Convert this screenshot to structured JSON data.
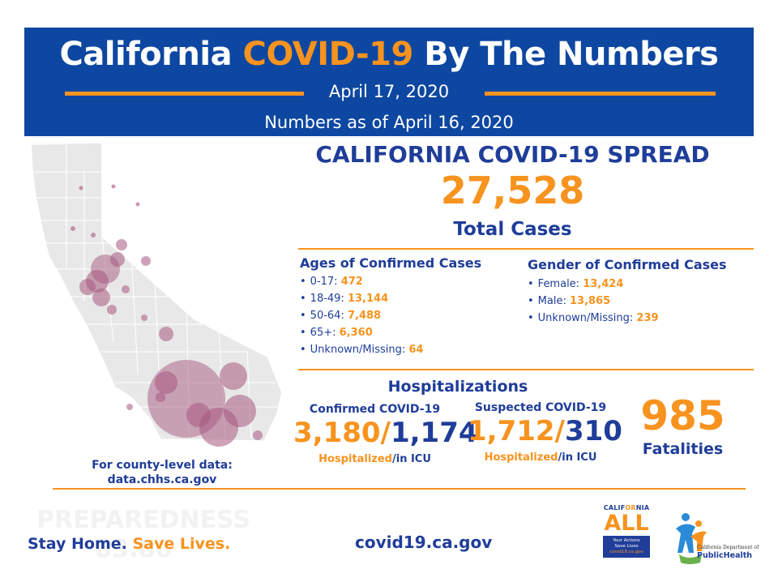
{
  "header": {
    "title_pre": "California ",
    "title_highlight": "COVID-19",
    "title_post": " By The Numbers",
    "date": "April 17, 2020",
    "as_of": "Numbers as of April 16, 2020"
  },
  "spread": {
    "title": "CALIFORNIA COVID-19 SPREAD",
    "total": "27,528",
    "total_label": "Total Cases"
  },
  "ages": {
    "title": "Ages of Confirmed Cases",
    "items": [
      {
        "label": "0-17: ",
        "value": "472"
      },
      {
        "label": "18-49: ",
        "value": "13,144"
      },
      {
        "label": "50-64: ",
        "value": "7,488"
      },
      {
        "label": "65+: ",
        "value": "6,360"
      },
      {
        "label": "Unknown/Missing: ",
        "value": "64"
      }
    ]
  },
  "gender": {
    "title": "Gender of Confirmed Cases",
    "items": [
      {
        "label": "Female: ",
        "value": "13,424"
      },
      {
        "label": "Male: ",
        "value": "13,865"
      },
      {
        "label": "Unknown/Missing: ",
        "value": "239"
      }
    ]
  },
  "hospitalizations": {
    "title": "Hospitalizations",
    "confirmed": {
      "label": "Confirmed COVID-19",
      "hospitalized": "3,180",
      "sep": "/",
      "icu": "1,174"
    },
    "suspected": {
      "label": "Suspected COVID-19",
      "hospitalized": "1,712",
      "sep": "/",
      "icu": "310"
    },
    "sub_hospitalized": "Hospitalized",
    "sub_icu": "/in ICU"
  },
  "fatalities": {
    "value": "985",
    "label": "Fatalities"
  },
  "county_note": {
    "line1": "For county-level data:",
    "line2": "data.chhs.ca.gov"
  },
  "footer": {
    "ghost_line1": "PREPAREDNESS",
    "ghost_line2": "83.80",
    "tagline_a": "Stay Home. ",
    "tagline_b": "Save Lives.",
    "website": "covid19.ca.gov"
  },
  "logo_california_all": {
    "cal_a": "CALIF",
    "cal_b": "OR",
    "cal_c": "NIA",
    "all": "ALL",
    "line1": "Your Actions",
    "line2": "Save Lives",
    "url": "covid19.ca.gov"
  },
  "logo_cdph": {
    "line1": "California Department of",
    "line2": "PublicHealth"
  },
  "colors": {
    "blue": "#0d47a1",
    "navy": "#1f3d99",
    "orange": "#f7931e",
    "bubble": "#a5577e"
  }
}
